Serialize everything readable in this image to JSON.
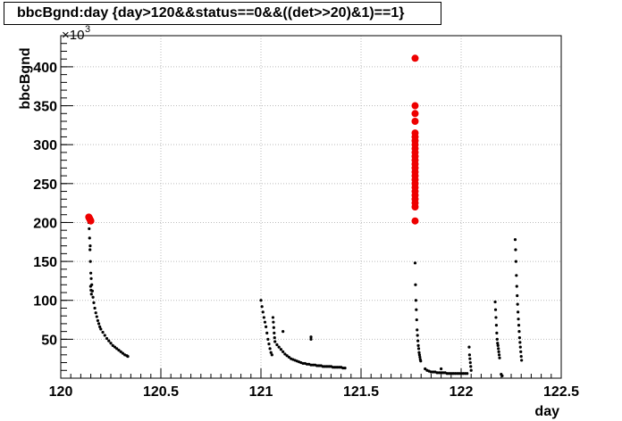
{
  "chart_data": {
    "type": "scatter",
    "title": "bbcBgnd:day {day>120&&status==0&&((det>>20)&1)==1}",
    "xlabel": "day",
    "ylabel": "bbcBgnd",
    "y_exponent_label": "×10",
    "y_exponent_power": "3",
    "xlim": [
      120.0,
      122.5
    ],
    "ylim": [
      0,
      440
    ],
    "x_ticks": [
      120,
      120.5,
      121,
      121.5,
      122,
      122.5
    ],
    "x_tick_labels": [
      "120",
      "120.5",
      "121",
      "121.5",
      "122",
      "122.5"
    ],
    "y_ticks": [
      50,
      100,
      150,
      200,
      250,
      300,
      350,
      400
    ],
    "y_tick_labels": [
      "50",
      "100",
      "150",
      "200",
      "250",
      "300",
      "350",
      "400"
    ],
    "grid": true,
    "colors": {
      "black_series": "#000000",
      "red_series": "#ee0000"
    },
    "series": [
      {
        "color": "#000000",
        "points": [
          [
            120.14,
            200
          ],
          [
            120.142,
            192
          ],
          [
            120.144,
            180
          ],
          [
            120.146,
            165
          ],
          [
            120.148,
            150
          ],
          [
            120.15,
            135
          ],
          [
            120.152,
            128
          ],
          [
            120.155,
            120
          ],
          [
            120.158,
            112
          ],
          [
            120.161,
            104
          ],
          [
            120.165,
            97
          ],
          [
            120.17,
            90
          ],
          [
            120.175,
            84
          ],
          [
            120.18,
            79
          ],
          [
            120.185,
            74
          ],
          [
            120.19,
            70
          ],
          [
            120.195,
            66
          ],
          [
            120.2,
            63
          ],
          [
            120.21,
            59
          ],
          [
            120.22,
            55
          ],
          [
            120.23,
            51
          ],
          [
            120.24,
            48
          ],
          [
            120.25,
            45
          ],
          [
            120.26,
            42
          ],
          [
            120.27,
            40
          ],
          [
            120.28,
            38
          ],
          [
            120.29,
            36
          ],
          [
            120.3,
            34
          ],
          [
            120.31,
            32
          ],
          [
            120.32,
            30
          ],
          [
            120.33,
            29
          ],
          [
            120.335,
            28
          ],
          [
            120.147,
            170
          ],
          [
            120.149,
            118
          ],
          [
            120.151,
            113
          ],
          [
            120.153,
            108
          ],
          [
            121.0,
            100
          ],
          [
            121.005,
            92
          ],
          [
            121.01,
            85
          ],
          [
            121.015,
            78
          ],
          [
            121.02,
            72
          ],
          [
            121.025,
            66
          ],
          [
            121.03,
            58
          ],
          [
            121.035,
            50
          ],
          [
            121.04,
            44
          ],
          [
            121.045,
            38
          ],
          [
            121.05,
            33
          ],
          [
            121.055,
            30
          ],
          [
            121.06,
            78
          ],
          [
            121.062,
            72
          ],
          [
            121.064,
            65
          ],
          [
            121.066,
            58
          ],
          [
            121.068,
            52
          ],
          [
            121.07,
            47
          ],
          [
            121.08,
            43
          ],
          [
            121.09,
            40
          ],
          [
            121.1,
            37
          ],
          [
            121.11,
            34
          ],
          [
            121.12,
            31
          ],
          [
            121.13,
            29
          ],
          [
            121.14,
            27
          ],
          [
            121.15,
            25
          ],
          [
            121.16,
            24
          ],
          [
            121.17,
            23
          ],
          [
            121.18,
            22
          ],
          [
            121.19,
            21
          ],
          [
            121.2,
            20
          ],
          [
            121.21,
            19
          ],
          [
            121.22,
            19
          ],
          [
            121.23,
            18
          ],
          [
            121.24,
            18
          ],
          [
            121.25,
            17
          ],
          [
            121.26,
            17
          ],
          [
            121.27,
            17
          ],
          [
            121.28,
            16
          ],
          [
            121.29,
            16
          ],
          [
            121.3,
            16
          ],
          [
            121.31,
            15
          ],
          [
            121.32,
            15
          ],
          [
            121.33,
            15
          ],
          [
            121.34,
            15
          ],
          [
            121.35,
            15
          ],
          [
            121.36,
            14
          ],
          [
            121.37,
            14
          ],
          [
            121.38,
            14
          ],
          [
            121.39,
            14
          ],
          [
            121.4,
            14
          ],
          [
            121.41,
            13
          ],
          [
            121.42,
            13
          ],
          [
            121.11,
            60
          ],
          [
            121.25,
            53
          ],
          [
            121.25,
            50
          ],
          [
            121.77,
            148
          ],
          [
            121.772,
            120
          ],
          [
            121.774,
            100
          ],
          [
            121.776,
            88
          ],
          [
            121.778,
            75
          ],
          [
            121.78,
            62
          ],
          [
            121.782,
            55
          ],
          [
            121.784,
            48
          ],
          [
            121.786,
            42
          ],
          [
            121.788,
            38
          ],
          [
            121.79,
            33
          ],
          [
            121.792,
            30
          ],
          [
            121.794,
            27
          ],
          [
            121.796,
            24
          ],
          [
            121.798,
            22
          ],
          [
            121.82,
            12
          ],
          [
            121.83,
            10
          ],
          [
            121.84,
            9
          ],
          [
            121.85,
            8
          ],
          [
            121.86,
            8
          ],
          [
            121.87,
            8
          ],
          [
            121.88,
            7
          ],
          [
            121.89,
            7
          ],
          [
            121.9,
            7
          ],
          [
            121.91,
            7
          ],
          [
            121.92,
            7
          ],
          [
            121.93,
            6
          ],
          [
            121.94,
            6
          ],
          [
            121.95,
            6
          ],
          [
            121.96,
            6
          ],
          [
            121.97,
            6
          ],
          [
            121.98,
            6
          ],
          [
            121.99,
            6
          ],
          [
            122.0,
            6
          ],
          [
            122.01,
            6
          ],
          [
            122.02,
            6
          ],
          [
            122.03,
            6
          ],
          [
            121.9,
            12
          ],
          [
            122.04,
            40
          ],
          [
            122.042,
            30
          ],
          [
            122.044,
            25
          ],
          [
            122.046,
            20
          ],
          [
            122.048,
            15
          ],
          [
            122.05,
            10
          ],
          [
            122.17,
            98
          ],
          [
            122.172,
            88
          ],
          [
            122.174,
            78
          ],
          [
            122.176,
            68
          ],
          [
            122.178,
            58
          ],
          [
            122.18,
            50
          ],
          [
            122.182,
            45
          ],
          [
            122.184,
            42
          ],
          [
            122.186,
            38
          ],
          [
            122.188,
            34
          ],
          [
            122.19,
            30
          ],
          [
            122.192,
            26
          ],
          [
            122.2,
            5
          ],
          [
            122.205,
            3
          ],
          [
            122.27,
            178
          ],
          [
            122.272,
            165
          ],
          [
            122.274,
            150
          ],
          [
            122.276,
            132
          ],
          [
            122.278,
            118
          ],
          [
            122.28,
            106
          ],
          [
            122.282,
            95
          ],
          [
            122.284,
            85
          ],
          [
            122.286,
            76
          ],
          [
            122.288,
            68
          ],
          [
            122.29,
            60
          ],
          [
            122.292,
            52
          ],
          [
            122.294,
            46
          ],
          [
            122.296,
            40
          ],
          [
            122.298,
            34
          ],
          [
            122.3,
            28
          ],
          [
            122.302,
            23
          ]
        ]
      },
      {
        "color": "#ee0000",
        "points": [
          [
            120.14,
            207
          ],
          [
            120.142,
            206
          ],
          [
            120.144,
            205
          ],
          [
            120.146,
            204
          ],
          [
            120.148,
            203
          ],
          [
            120.15,
            202
          ],
          [
            121.77,
            411
          ],
          [
            121.77,
            350
          ],
          [
            121.77,
            340
          ],
          [
            121.77,
            330
          ],
          [
            121.77,
            315
          ],
          [
            121.77,
            310
          ],
          [
            121.77,
            305
          ],
          [
            121.77,
            300
          ],
          [
            121.77,
            295
          ],
          [
            121.77,
            290
          ],
          [
            121.77,
            285
          ],
          [
            121.77,
            280
          ],
          [
            121.77,
            275
          ],
          [
            121.77,
            270
          ],
          [
            121.77,
            265
          ],
          [
            121.77,
            260
          ],
          [
            121.77,
            255
          ],
          [
            121.77,
            250
          ],
          [
            121.77,
            245
          ],
          [
            121.77,
            240
          ],
          [
            121.77,
            235
          ],
          [
            121.77,
            230
          ],
          [
            121.77,
            225
          ],
          [
            121.77,
            220
          ],
          [
            121.77,
            202
          ]
        ]
      }
    ]
  }
}
